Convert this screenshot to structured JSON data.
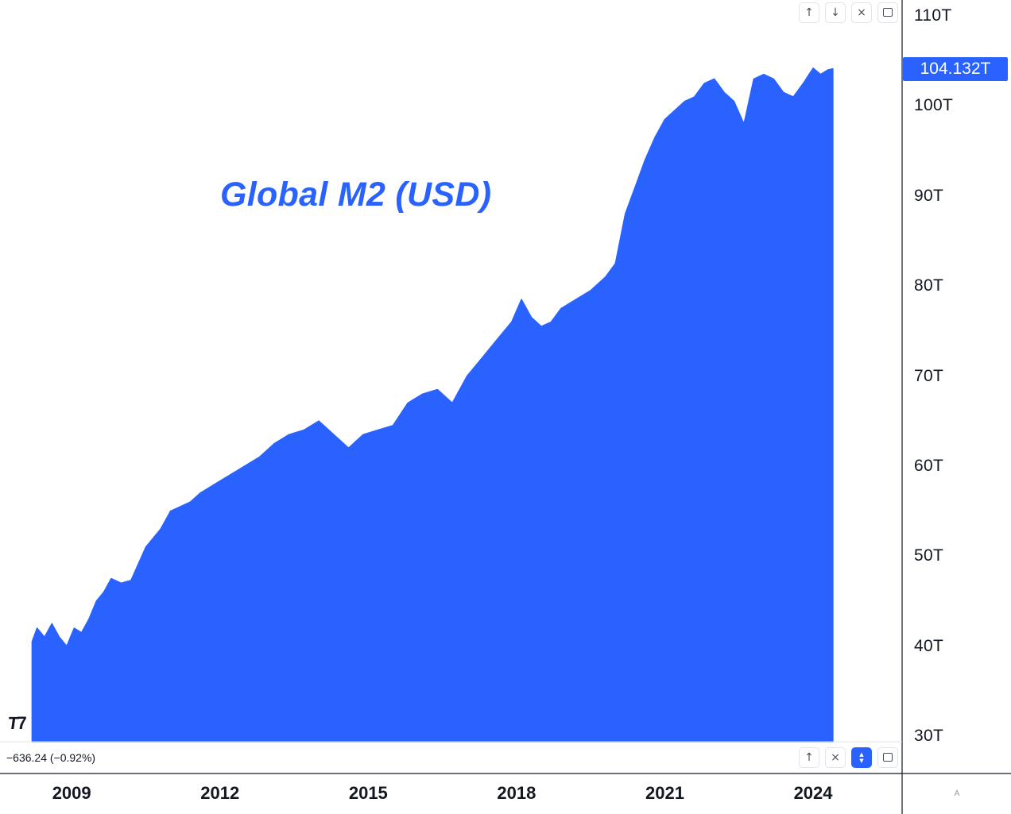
{
  "title": "Global M2 (USD)",
  "last_price": "104.132T",
  "change_text": "−636.24 (−0.92%)",
  "logo_text": "TV",
  "scale_mode_label": "A",
  "colors": {
    "series": "#2962ff",
    "price_label": "#2962ff",
    "axis_line": "#131722"
  },
  "top_controls": [
    {
      "name": "move-up-button",
      "icon": "arrow-up-icon",
      "glyph": "↑"
    },
    {
      "name": "move-down-button",
      "icon": "arrow-down-icon",
      "glyph": "↓"
    },
    {
      "name": "close-pane-button",
      "icon": "close-icon",
      "glyph": "×"
    },
    {
      "name": "maximize-pane-button",
      "icon": "maximize-icon",
      "glyph": ""
    }
  ],
  "bottom_controls": [
    {
      "name": "move-up-button",
      "icon": "arrow-up-icon",
      "glyph": "↑"
    },
    {
      "name": "close-pane-button",
      "icon": "close-icon",
      "glyph": "×"
    },
    {
      "name": "collapse-pane-button",
      "icon": "up-down-arrows-icon",
      "glyph": "⌃⌄",
      "active": true
    },
    {
      "name": "maximize-pane-button",
      "icon": "maximize-icon",
      "glyph": ""
    }
  ],
  "chart_data": {
    "type": "area",
    "ylim": [
      30,
      110
    ],
    "xlim": [
      2007.55,
      2025.8
    ],
    "ytick_labels": [
      "110T",
      "100T",
      "90T",
      "80T",
      "70T",
      "60T",
      "50T",
      "40T",
      "30T"
    ],
    "ytick_values": [
      110,
      100,
      90,
      80,
      70,
      60,
      50,
      40,
      30
    ],
    "xtick_labels": [
      "2009",
      "2012",
      "2015",
      "2018",
      "2021",
      "2024"
    ],
    "xtick_values": [
      2009,
      2012,
      2015,
      2018,
      2021,
      2024
    ],
    "series": [
      {
        "values_unit": "T USD",
        "x": [
          2008.2,
          2008.3,
          2008.45,
          2008.6,
          2008.75,
          2008.9,
          2009.05,
          2009.2,
          2009.35,
          2009.5,
          2009.65,
          2009.8,
          2010.0,
          2010.2,
          2010.5,
          2010.8,
          2011.0,
          2011.2,
          2011.4,
          2011.6,
          2011.9,
          2012.2,
          2012.5,
          2012.8,
          2013.1,
          2013.4,
          2013.7,
          2014.0,
          2014.3,
          2014.6,
          2014.9,
          2015.2,
          2015.5,
          2015.8,
          2016.1,
          2016.4,
          2016.7,
          2017.0,
          2017.3,
          2017.6,
          2017.9,
          2018.1,
          2018.3,
          2018.5,
          2018.7,
          2018.9,
          2019.2,
          2019.5,
          2019.8,
          2020.0,
          2020.2,
          2020.4,
          2020.6,
          2020.8,
          2021.0,
          2021.2,
          2021.4,
          2021.6,
          2021.8,
          2022.0,
          2022.2,
          2022.4,
          2022.6,
          2022.8,
          2023.0,
          2023.2,
          2023.4,
          2023.6,
          2023.8,
          2024.0,
          2024.15,
          2024.3,
          2024.4
        ],
        "y": [
          40.5,
          42,
          41,
          42.5,
          41,
          40,
          42,
          41.5,
          43,
          45,
          46,
          47.5,
          47,
          47.3,
          51,
          53,
          55,
          55.5,
          56,
          57,
          58,
          59,
          60,
          61,
          62.5,
          63.5,
          64,
          65,
          63.5,
          62,
          63.5,
          64,
          64.5,
          67,
          68,
          68.5,
          67,
          70,
          72,
          74,
          76,
          78.5,
          76.5,
          75.5,
          76,
          77.5,
          78.5,
          79.5,
          81,
          82.5,
          88,
          91,
          94,
          96.5,
          98.5,
          99.5,
          100.5,
          101,
          102.5,
          103,
          101.5,
          100.5,
          98,
          103,
          103.5,
          103,
          101.5,
          101,
          102.5,
          104.2,
          103.5,
          104,
          104.13
        ]
      }
    ]
  }
}
